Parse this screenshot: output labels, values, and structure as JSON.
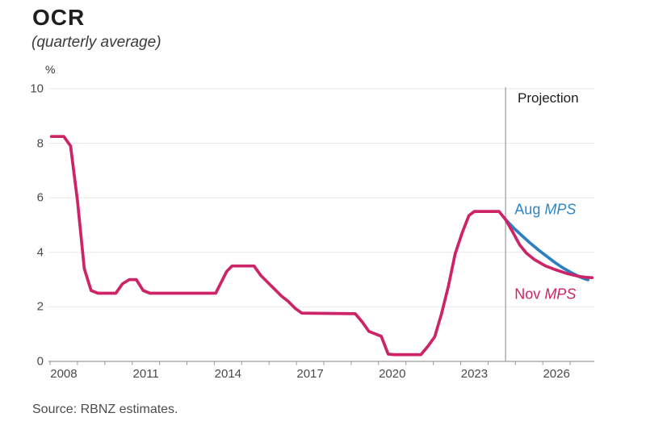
{
  "footer": {
    "source": "Source: RBNZ estimates."
  },
  "chart_data": {
    "type": "line",
    "title": "OCR",
    "subtitle": "(quarterly average)",
    "ylabel": "%",
    "xlabel": "",
    "ylim": [
      0,
      10
    ],
    "yticks": [
      0,
      2,
      4,
      6,
      8,
      10
    ],
    "xticks": [
      2008,
      2011,
      2014,
      2017,
      2020,
      2023,
      2026
    ],
    "x_year_range": [
      2008,
      2027
    ],
    "xlim": [
      2007.35,
      2027.9
    ],
    "grid": "horizontal",
    "legend_position": "inline-annotations",
    "colors": {
      "grid": "#eaeaea",
      "axis": "#9a9a9a",
      "divider": "#9a9a9a",
      "pink": "#cd2367",
      "blue": "#2d7fc2",
      "tick_text": "#4a4a4a"
    },
    "projection": {
      "label": "Projection",
      "divider_year": 2024.64,
      "divider_top": 10.05
    },
    "annotations": [
      {
        "id": "projection-label",
        "x": 2025.08,
        "y": 9.66,
        "size": 17,
        "color": "#1d1d1d",
        "parts": [
          {
            "text": "Projection",
            "italic": false
          }
        ]
      },
      {
        "id": "aug-mps-label",
        "x": 2024.97,
        "y": 5.55,
        "size": 18,
        "color": "#2d85c6",
        "parts": [
          {
            "text": "Aug ",
            "italic": false
          },
          {
            "text": "MPS",
            "italic": true
          }
        ]
      },
      {
        "id": "nov-mps-label",
        "x": 2024.97,
        "y": 2.45,
        "size": 18,
        "color": "#cd2367",
        "parts": [
          {
            "text": "Nov ",
            "italic": false
          },
          {
            "text": "MPS",
            "italic": true
          }
        ]
      }
    ],
    "series": [
      {
        "id": "aug-mps-projection-line",
        "name": "Aug MPS",
        "color": "#2d7fc2",
        "style": "projection",
        "points": [
          [
            2024.64,
            5.2
          ],
          [
            2024.95,
            4.88
          ],
          [
            2025.25,
            4.6
          ],
          [
            2025.55,
            4.33
          ],
          [
            2025.85,
            4.08
          ],
          [
            2026.15,
            3.85
          ],
          [
            2026.45,
            3.62
          ],
          [
            2026.75,
            3.42
          ],
          [
            2027.05,
            3.25
          ],
          [
            2027.35,
            3.1
          ],
          [
            2027.55,
            3.02
          ],
          [
            2027.65,
            2.99
          ]
        ]
      },
      {
        "id": "ocr-history-nov-mps-line",
        "name": "OCR (actual) / Nov MPS",
        "color": "#cd2367",
        "style": "actual-plus-projection",
        "points": [
          [
            2008.05,
            8.25
          ],
          [
            2008.5,
            8.25
          ],
          [
            2008.75,
            7.9
          ],
          [
            2009.0,
            5.9
          ],
          [
            2009.25,
            3.4
          ],
          [
            2009.5,
            2.6
          ],
          [
            2009.75,
            2.5
          ],
          [
            2010.4,
            2.5
          ],
          [
            2010.65,
            2.85
          ],
          [
            2010.9,
            3.0
          ],
          [
            2011.15,
            3.0
          ],
          [
            2011.4,
            2.6
          ],
          [
            2011.65,
            2.5
          ],
          [
            2014.05,
            2.5
          ],
          [
            2014.2,
            2.8
          ],
          [
            2014.45,
            3.3
          ],
          [
            2014.65,
            3.5
          ],
          [
            2015.45,
            3.5
          ],
          [
            2015.7,
            3.15
          ],
          [
            2015.95,
            2.9
          ],
          [
            2016.2,
            2.65
          ],
          [
            2016.45,
            2.4
          ],
          [
            2016.7,
            2.2
          ],
          [
            2016.95,
            1.95
          ],
          [
            2017.2,
            1.77
          ],
          [
            2019.15,
            1.75
          ],
          [
            2019.4,
            1.45
          ],
          [
            2019.65,
            1.1
          ],
          [
            2019.9,
            1.0
          ],
          [
            2020.1,
            0.92
          ],
          [
            2020.35,
            0.27
          ],
          [
            2020.55,
            0.25
          ],
          [
            2021.55,
            0.25
          ],
          [
            2021.8,
            0.55
          ],
          [
            2022.05,
            0.9
          ],
          [
            2022.3,
            1.75
          ],
          [
            2022.55,
            2.75
          ],
          [
            2022.8,
            3.95
          ],
          [
            2023.05,
            4.7
          ],
          [
            2023.3,
            5.35
          ],
          [
            2023.5,
            5.5
          ],
          [
            2024.4,
            5.5
          ],
          [
            2024.64,
            5.2
          ],
          [
            2024.9,
            4.75
          ],
          [
            2025.15,
            4.28
          ],
          [
            2025.4,
            3.97
          ],
          [
            2025.7,
            3.73
          ],
          [
            2026.1,
            3.5
          ],
          [
            2026.5,
            3.35
          ],
          [
            2026.9,
            3.22
          ],
          [
            2027.3,
            3.12
          ],
          [
            2027.6,
            3.08
          ],
          [
            2027.8,
            3.07
          ]
        ]
      }
    ]
  }
}
